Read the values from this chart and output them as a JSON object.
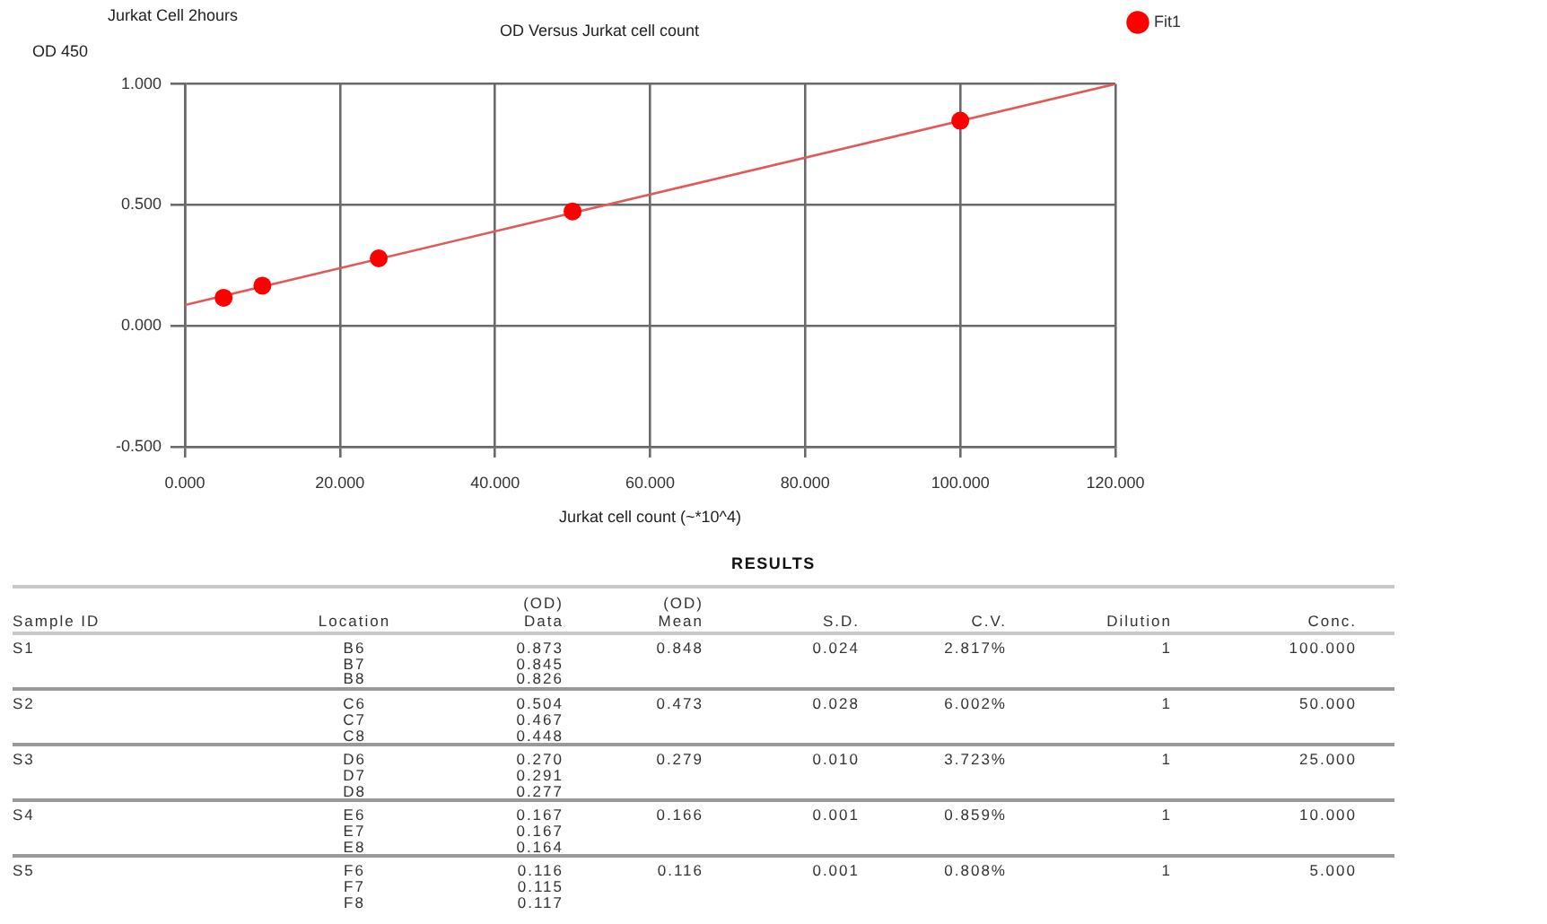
{
  "chart_data": [
    {
      "type": "scatter",
      "title": "OD Versus Jurkat cell count",
      "xlabel": "Jurkat cell count (~*10^4)",
      "ylabel": "OD 450",
      "annotations": [
        "Jurkat Cell 2hours"
      ],
      "series": [
        {
          "name": "Fit1",
          "type": "scatter",
          "marker": "circle",
          "color": "#ff0000",
          "x": [
            5,
            10,
            25,
            50,
            100
          ],
          "values": [
            0.116,
            0.166,
            0.279,
            0.473,
            0.848
          ]
        },
        {
          "type": "line",
          "color": "#e05a5a",
          "x": [
            0,
            120
          ],
          "values": [
            0.086,
            1.0
          ]
        }
      ],
      "xlim": [
        0,
        120
      ],
      "xticks": [
        {
          "value": 0,
          "label": "0.000"
        },
        {
          "value": 20,
          "label": "20.000"
        },
        {
          "value": 40,
          "label": "40.000"
        },
        {
          "value": 60,
          "label": "60.000"
        },
        {
          "value": 80,
          "label": "80.000"
        },
        {
          "value": 100,
          "label": "100.000"
        },
        {
          "value": 120,
          "label": "120.000"
        }
      ],
      "ylim": [
        -0.5,
        1.0
      ],
      "yticks": [
        {
          "value": -0.5,
          "label": "-0.500"
        },
        {
          "value": 0,
          "label": "0.000"
        },
        {
          "value": 0.5,
          "label": "0.500"
        },
        {
          "value": 1,
          "label": "1.000"
        }
      ],
      "grid": true,
      "legend": "top right"
    },
    {
      "type": "other",
      "title": "RESULTS",
      "categories": [
        "Sample ID",
        "Location",
        "(OD)\nData",
        "(OD)\nMean",
        "S.D.",
        "C.V.",
        "Dilution",
        "Conc."
      ],
      "cell_labels": [
        [
          "S1",
          "B6\nB7\nB8",
          "0.873\n0.845\n0.826",
          "0.848",
          "0.024",
          "2.817%",
          "1",
          "100.000"
        ],
        [
          "S2",
          "C6\nC7\nC8",
          "0.504\n0.467\n0.448",
          "0.473",
          "0.028",
          "6.002%",
          "1",
          "50.000"
        ],
        [
          "S3",
          "D6\nD7\nD8",
          "0.270\n0.291\n0.277",
          "0.279",
          "0.010",
          "3.723%",
          "1",
          "25.000"
        ],
        [
          "S4",
          "E6\nE7\nE8",
          "0.167\n0.167\n0.164",
          "0.166",
          "0.001",
          "0.859%",
          "1",
          "10.000"
        ],
        [
          "S5",
          "F6\nF7\nF8",
          "0.116\n0.115\n0.117",
          "0.116",
          "0.001",
          "0.808%",
          "1",
          "5.000"
        ]
      ]
    }
  ]
}
